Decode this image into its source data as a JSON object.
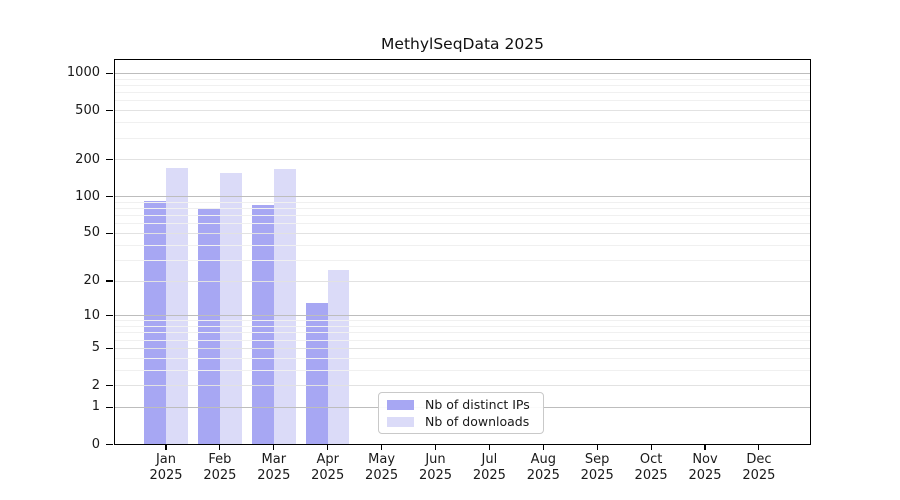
{
  "title": "MethylSeqData 2025",
  "chart_data": {
    "type": "bar",
    "title": "MethylSeqData 2025",
    "categories": [
      "Jan",
      "Feb",
      "Mar",
      "Apr",
      "May",
      "Jun",
      "Jul",
      "Aug",
      "Sep",
      "Oct",
      "Nov",
      "Dec"
    ],
    "year": "2025",
    "series": [
      {
        "name": "Nb of distinct IPs",
        "color": "#a7a7f3",
        "values": [
          93,
          80,
          85,
          13,
          0,
          0,
          0,
          0,
          0,
          0,
          0,
          0
        ]
      },
      {
        "name": "Nb of downloads",
        "color": "#dbdbf8",
        "values": [
          172,
          157,
          169,
          25,
          0,
          0,
          0,
          0,
          0,
          0,
          0,
          0
        ]
      }
    ],
    "yscale": "log1p",
    "yticks": [
      0,
      1,
      2,
      5,
      10,
      20,
      50,
      100,
      200,
      500,
      1000
    ],
    "ylim": [
      0,
      1300
    ],
    "xlabel": "",
    "ylabel": "",
    "grid": "horizontal",
    "legend_position": "bottom-center"
  },
  "legend": {
    "items": [
      {
        "label": "Nb of distinct IPs",
        "color": "#a7a7f3"
      },
      {
        "label": "Nb of downloads",
        "color": "#dbdbf8"
      }
    ]
  },
  "colors": {
    "ips_bar": "#a7a7f3",
    "downloads_bar": "#dbdbf8",
    "grid_decade": "#bdbdbd",
    "grid_labeled": "#e2e2e2",
    "grid_minor": "#f0f0f0",
    "spine": "#000000",
    "background": "#ffffff"
  }
}
